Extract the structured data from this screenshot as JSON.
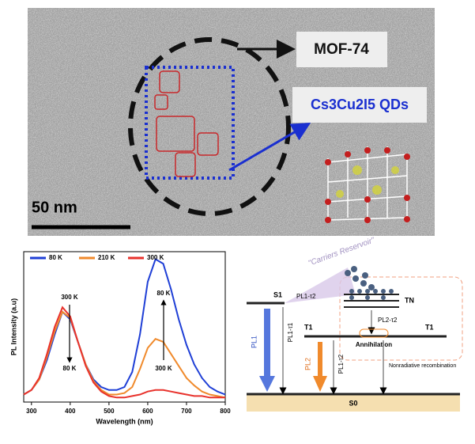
{
  "tem": {
    "labels": [
      "MOF-74",
      "Cs3Cu2I5 QDs"
    ],
    "scale_bar": "50 nm"
  },
  "chart_data": {
    "type": "line",
    "x_label": "Wavelength (nm)",
    "y_label": "PL Intensity (a.u)",
    "x": [
      280,
      300,
      320,
      340,
      360,
      380,
      400,
      420,
      440,
      460,
      480,
      500,
      520,
      540,
      560,
      580,
      600,
      620,
      640,
      660,
      680,
      700,
      720,
      740,
      760,
      780,
      800
    ],
    "series": [
      {
        "name": "80 K",
        "color": "#1f3fd6",
        "values": [
          0.05,
          0.08,
          0.15,
          0.28,
          0.45,
          0.6,
          0.55,
          0.4,
          0.25,
          0.15,
          0.1,
          0.08,
          0.08,
          0.1,
          0.2,
          0.45,
          0.8,
          0.95,
          0.92,
          0.75,
          0.55,
          0.38,
          0.25,
          0.16,
          0.1,
          0.07,
          0.05
        ]
      },
      {
        "name": "210 K",
        "color": "#f08a2c",
        "values": [
          0.05,
          0.08,
          0.15,
          0.3,
          0.47,
          0.6,
          0.56,
          0.4,
          0.25,
          0.14,
          0.08,
          0.05,
          0.05,
          0.06,
          0.1,
          0.22,
          0.36,
          0.42,
          0.4,
          0.32,
          0.24,
          0.16,
          0.11,
          0.07,
          0.05,
          0.04,
          0.03
        ]
      },
      {
        "name": "300 K",
        "color": "#e8322c",
        "values": [
          0.05,
          0.08,
          0.16,
          0.32,
          0.5,
          0.63,
          0.57,
          0.4,
          0.24,
          0.13,
          0.07,
          0.04,
          0.03,
          0.03,
          0.04,
          0.05,
          0.07,
          0.08,
          0.08,
          0.07,
          0.06,
          0.05,
          0.04,
          0.04,
          0.03,
          0.03,
          0.03
        ]
      }
    ],
    "xlim": [
      280,
      800
    ],
    "xticks": [
      300,
      400,
      500,
      600,
      700,
      800
    ],
    "ylim": [
      0,
      1
    ],
    "annotations": [
      "300 K",
      "80 K",
      "80 K",
      "300 K"
    ]
  },
  "diagram": {
    "reservoir": "\"Carriers Reservoir\"",
    "s1": "S1",
    "tn": "TN",
    "t1_left": "T1",
    "t1_right": "T1",
    "pl1": "PL1",
    "pl1_t1": "PL1-τ1",
    "pl1_t2_top": "PL1-τ2",
    "pl2_t2": "PL2-τ2",
    "pl2": "PL2",
    "pl1_t2_low": "PL1-τ2",
    "annihilation": "Annihilation",
    "nonradiative": "Nonradiative recombination",
    "s0": "S0"
  }
}
